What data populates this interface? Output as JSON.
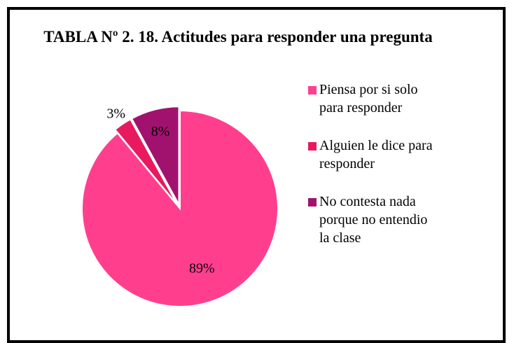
{
  "chart_data": {
    "type": "pie",
    "title": "TABLA Nº 2. 18. Actitudes para responder una pregunta",
    "categories": [
      "Piensa por si solo para responder",
      "Alguien le dice para responder",
      "No contesta nada porque no entendio la clase"
    ],
    "values": [
      89,
      3,
      8
    ],
    "value_labels": [
      "89%",
      "3%",
      "8%"
    ],
    "colors": [
      "#ff3f8e",
      "#e8195f",
      "#a1126f"
    ],
    "legend": "right"
  }
}
